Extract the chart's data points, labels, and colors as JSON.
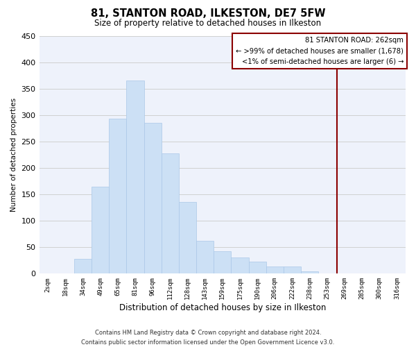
{
  "title": "81, STANTON ROAD, ILKESTON, DE7 5FW",
  "subtitle": "Size of property relative to detached houses in Ilkeston",
  "xlabel": "Distribution of detached houses by size in Ilkeston",
  "ylabel": "Number of detached properties",
  "bar_color": "#cce0f5",
  "bar_edge_color": "#aac8e8",
  "background_color": "#eef2fb",
  "grid_color": "#d0d0d0",
  "categories": [
    "2sqm",
    "18sqm",
    "34sqm",
    "49sqm",
    "65sqm",
    "81sqm",
    "96sqm",
    "112sqm",
    "128sqm",
    "143sqm",
    "159sqm",
    "175sqm",
    "190sqm",
    "206sqm",
    "222sqm",
    "238sqm",
    "253sqm",
    "269sqm",
    "285sqm",
    "300sqm",
    "316sqm"
  ],
  "values": [
    0,
    0,
    28,
    165,
    293,
    365,
    285,
    228,
    135,
    62,
    43,
    30,
    23,
    13,
    14,
    5,
    0,
    0,
    0,
    0,
    0
  ],
  "ylim": [
    0,
    450
  ],
  "yticks": [
    0,
    50,
    100,
    150,
    200,
    250,
    300,
    350,
    400,
    450
  ],
  "annotation_title": "81 STANTON ROAD: 262sqm",
  "annotation_line1": "← >99% of detached houses are smaller (1,678)",
  "annotation_line2": "<1% of semi-detached houses are larger (6) →",
  "footer_line1": "Contains HM Land Registry data © Crown copyright and database right 2024.",
  "footer_line2": "Contains public sector information licensed under the Open Government Licence v3.0."
}
